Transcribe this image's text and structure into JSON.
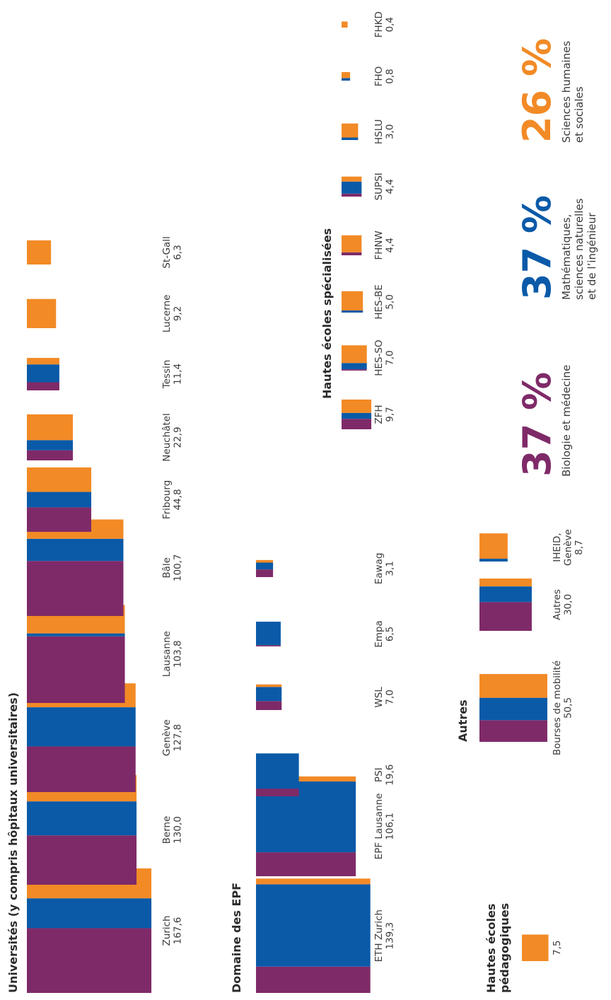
{
  "colors": {
    "biology_medicine": "#7f2a68",
    "math_natural_engineering": "#0a5aa8",
    "humanities_social": "#f28a26"
  },
  "chart_data": {
    "type": "bar",
    "groups": [
      {
        "key": "universites",
        "title": "Universités (y compris hôpitaux universitaires)",
        "items": [
          {
            "name": "Zurich",
            "total": "167,6",
            "value": 167.6,
            "shares": [
              0.52,
              0.24,
              0.24
            ]
          },
          {
            "name": "Berne",
            "total": "130,0",
            "value": 130.0,
            "shares": [
              0.45,
              0.31,
              0.24
            ]
          },
          {
            "name": "Genève",
            "total": "127,8",
            "value": 127.8,
            "shares": [
              0.42,
              0.36,
              0.22
            ]
          },
          {
            "name": "Lausanne",
            "total": "103,8",
            "value": 103.8,
            "shares": [
              0.68,
              0.03,
              0.29
            ]
          },
          {
            "name": "Bâle",
            "total": "100,7",
            "value": 100.7,
            "shares": [
              0.57,
              0.23,
              0.2
            ]
          },
          {
            "name": "Fribourg",
            "total": "44,8",
            "value": 44.8,
            "shares": [
              0.38,
              0.24,
              0.38
            ]
          },
          {
            "name": "Neuchâtel",
            "total": "22,9",
            "value": 22.9,
            "shares": [
              0.22,
              0.22,
              0.56
            ]
          },
          {
            "name": "Tessin",
            "total": "11,4",
            "value": 11.4,
            "shares": [
              0.25,
              0.55,
              0.2
            ]
          },
          {
            "name": "Lucerne",
            "total": "9,2",
            "value": 9.2,
            "shares": [
              0,
              0,
              1
            ]
          },
          {
            "name": "St-Gall",
            "total": "6,3",
            "value": 6.3,
            "shares": [
              0,
              0,
              1
            ]
          }
        ]
      },
      {
        "key": "epf",
        "title": "Domaine des EPF",
        "items": [
          {
            "name": "ETH Zurich",
            "total": "139,3",
            "value": 139.3,
            "shares": [
              0.23,
              0.72,
              0.05
            ]
          },
          {
            "name": "EPF Lausanne",
            "total": "106,1",
            "value": 106.1,
            "shares": [
              0.24,
              0.71,
              0.05
            ]
          },
          {
            "name": "PSI",
            "total": "19,6",
            "value": 19.6,
            "shares": [
              0.18,
              0.82,
              0
            ]
          },
          {
            "name": "WSL",
            "total": "7,0",
            "value": 7.0,
            "shares": [
              0.35,
              0.55,
              0.1
            ]
          },
          {
            "name": "Empa",
            "total": "6,5",
            "value": 6.5,
            "shares": [
              0.05,
              0.95,
              0
            ]
          },
          {
            "name": "Eawag",
            "total": "3,1",
            "value": 3.1,
            "shares": [
              0.45,
              0.4,
              0.15
            ]
          }
        ]
      },
      {
        "key": "hes",
        "title": "Hautes écoles spécialisées",
        "items": [
          {
            "name": "ZFH",
            "total": "9,7",
            "value": 9.7,
            "shares": [
              0.35,
              0.2,
              0.45
            ]
          },
          {
            "name": "HES-SO",
            "total": "7,0",
            "value": 7.0,
            "shares": [
              0.05,
              0.25,
              0.7
            ]
          },
          {
            "name": "HES-BE",
            "total": "5,0",
            "value": 5.0,
            "shares": [
              0,
              0.1,
              0.9
            ]
          },
          {
            "name": "FHNW",
            "total": "4,4",
            "value": 4.4,
            "shares": [
              0.15,
              0,
              0.85
            ]
          },
          {
            "name": "SUPSI",
            "total": "4,4",
            "value": 4.4,
            "shares": [
              0.15,
              0.6,
              0.25
            ]
          },
          {
            "name": "HSLU",
            "total": "3,0",
            "value": 3.0,
            "shares": [
              0,
              0.15,
              0.85
            ]
          },
          {
            "name": "FHO",
            "total": "0,8",
            "value": 0.8,
            "shares": [
              0,
              0.3,
              0.7
            ]
          },
          {
            "name": "FHKD",
            "total": "0,4",
            "value": 0.4,
            "shares": [
              0,
              0,
              1
            ]
          }
        ]
      },
      {
        "key": "autres",
        "title": "Autres",
        "items": [
          {
            "name": "Bourses de mobilité",
            "total": "50,5",
            "value": 50.5,
            "shares": [
              0.32,
              0.33,
              0.35
            ]
          },
          {
            "name": "Autres",
            "total": "30,0",
            "value": 30.0,
            "shares": [
              0.55,
              0.3,
              0.15
            ]
          },
          {
            "name": "IHEID, Genève",
            "total": "8,7",
            "value": 8.7,
            "shares": [
              0,
              0.1,
              0.9
            ]
          }
        ]
      },
      {
        "key": "hep",
        "title": "Hautes écoles pédagogiques",
        "items": [
          {
            "name": "",
            "total": "7,5",
            "value": 7.5,
            "shares": [
              0,
              0,
              1
            ]
          }
        ]
      }
    ],
    "legend": [
      {
        "percent": "37 %",
        "caption": "Biologie et médecine",
        "color": "#7f2a68"
      },
      {
        "percent": "37 %",
        "caption": "Mathématiques, sciences naturelles et de l’ingénieur",
        "color": "#0a5aa8"
      },
      {
        "percent": "26 %",
        "caption": "Sciences humaines et sociales",
        "color": "#f28a26"
      }
    ]
  }
}
